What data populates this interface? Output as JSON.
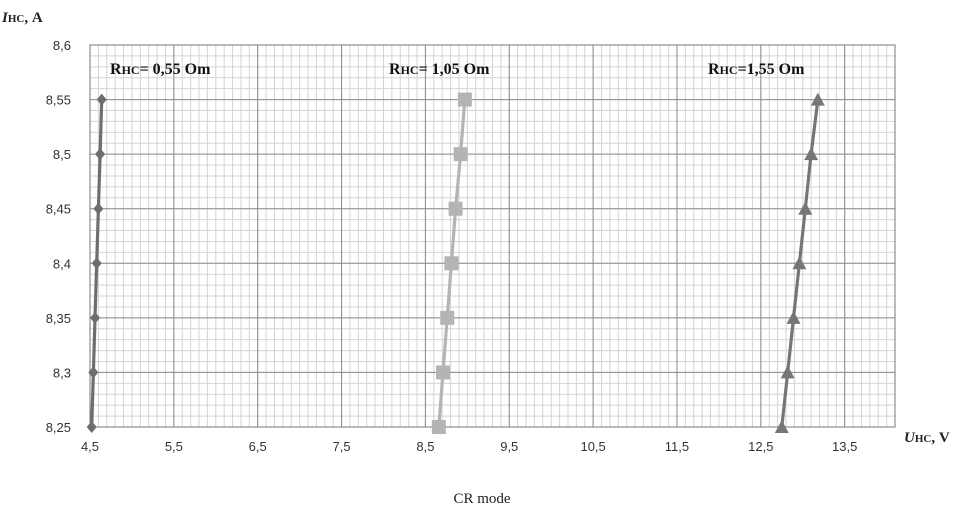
{
  "chart_data": {
    "type": "line",
    "caption": "CR mode",
    "ylabel": {
      "italic": "I",
      "sub": "НС",
      "tail": ", A"
    },
    "xlabel": {
      "italic": "U",
      "sub": "НС",
      "tail": ", V"
    },
    "xlim": [
      4.5,
      14.1
    ],
    "ylim": [
      8.25,
      8.6
    ],
    "x_ticks": [
      "4,5",
      "5,5",
      "6,5",
      "7,5",
      "8,5",
      "9,5",
      "10,5",
      "11,5",
      "12,5",
      "13,5"
    ],
    "x_tick_values": [
      4.5,
      5.5,
      6.5,
      7.5,
      8.5,
      9.5,
      10.5,
      11.5,
      12.5,
      13.5
    ],
    "y_ticks": [
      "8,25",
      "8,3",
      "8,35",
      "8,4",
      "8,45",
      "8,5",
      "8,55",
      "8,6"
    ],
    "y_tick_values": [
      8.25,
      8.3,
      8.35,
      8.4,
      8.45,
      8.5,
      8.55,
      8.6
    ],
    "grid": true,
    "series": [
      {
        "name": "Rнс= 0,55  Om",
        "label": {
          "main": "R",
          "sub": "НС",
          "tail": "= 0,55  Om"
        },
        "marker": "diamond",
        "color": "#6e6e6e",
        "x": [
          4.52,
          4.54,
          4.56,
          4.58,
          4.6,
          4.62,
          4.64
        ],
        "y": [
          8.25,
          8.3,
          8.35,
          8.4,
          8.45,
          8.5,
          8.55
        ]
      },
      {
        "name": "Rнс= 1,05  Om",
        "label": {
          "main": "R",
          "sub": "НС",
          "tail": "= 1,05  Om"
        },
        "marker": "square",
        "color": "#b4b4b4",
        "x": [
          8.66,
          8.71,
          8.76,
          8.81,
          8.86,
          8.92,
          8.97
        ],
        "y": [
          8.25,
          8.3,
          8.35,
          8.4,
          8.45,
          8.5,
          8.55
        ]
      },
      {
        "name": "Rнс=1,55  Om",
        "label": {
          "main": "R",
          "sub": "НС",
          "tail": "=1,55  Om"
        },
        "marker": "triangle",
        "color": "#767676",
        "x": [
          12.75,
          12.82,
          12.89,
          12.96,
          13.03,
          13.1,
          13.18
        ],
        "y": [
          8.25,
          8.3,
          8.35,
          8.4,
          8.45,
          8.5,
          8.55
        ]
      }
    ]
  }
}
